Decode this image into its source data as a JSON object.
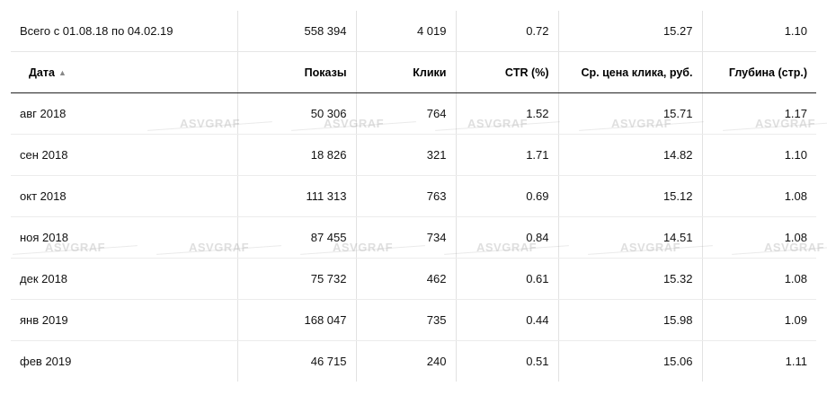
{
  "summary": {
    "label": "Всего с 01.08.18 по 04.02.19",
    "shows": "558 394",
    "clicks": "4 019",
    "ctr": "0.72",
    "cpc": "15.27",
    "depth": "1.10"
  },
  "headers": {
    "date": "Дата",
    "sort_icon": "▲",
    "shows": "Показы",
    "clicks": "Клики",
    "ctr": "CTR (%)",
    "cpc": "Ср. цена клика, руб.",
    "depth": "Глубина (стр.)"
  },
  "rows": [
    {
      "date": "авг 2018",
      "shows": "50 306",
      "clicks": "764",
      "ctr": "1.52",
      "cpc": "15.71",
      "depth": "1.17"
    },
    {
      "date": "сен 2018",
      "shows": "18 826",
      "clicks": "321",
      "ctr": "1.71",
      "cpc": "14.82",
      "depth": "1.10"
    },
    {
      "date": "окт 2018",
      "shows": "111 313",
      "clicks": "763",
      "ctr": "0.69",
      "cpc": "15.12",
      "depth": "1.08"
    },
    {
      "date": "ноя 2018",
      "shows": "87 455",
      "clicks": "734",
      "ctr": "0.84",
      "cpc": "14.51",
      "depth": "1.08"
    },
    {
      "date": "дек 2018",
      "shows": "75 732",
      "clicks": "462",
      "ctr": "0.61",
      "cpc": "15.32",
      "depth": "1.08"
    },
    {
      "date": "янв 2019",
      "shows": "168 047",
      "clicks": "735",
      "ctr": "0.44",
      "cpc": "15.98",
      "depth": "1.09"
    },
    {
      "date": "фев 2019",
      "shows": "46 715",
      "clicks": "240",
      "ctr": "0.51",
      "cpc": "15.06",
      "depth": "1.11"
    }
  ],
  "watermark_text": "ASVGRAF"
}
